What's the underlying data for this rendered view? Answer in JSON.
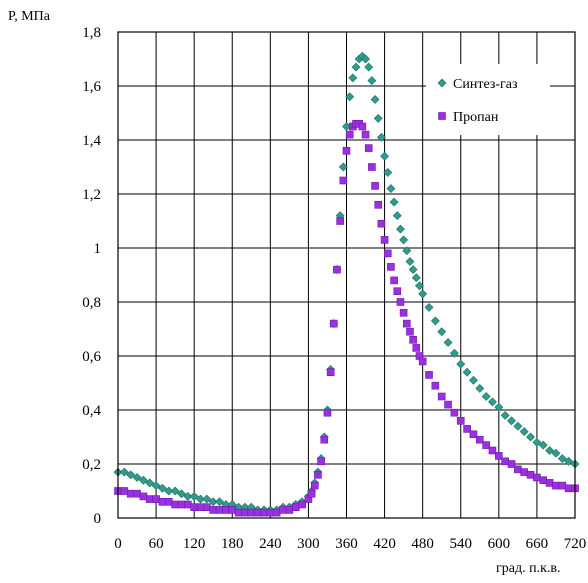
{
  "chart_data": {
    "type": "scatter",
    "ylabel": "P, МПа",
    "xlabel": "град. п.к.в.",
    "xlim": [
      0,
      720
    ],
    "ylim": [
      0,
      1.8
    ],
    "xticks": [
      0,
      60,
      120,
      180,
      240,
      300,
      360,
      420,
      480,
      540,
      600,
      660,
      720
    ],
    "yticks": [
      0,
      0.2,
      0.4,
      0.6,
      0.8,
      1.0,
      1.2,
      1.4,
      1.6,
      1.8
    ],
    "xtick_labels": [
      "0",
      "60",
      "120",
      "180",
      "240",
      "300",
      "360",
      "420",
      "480",
      "540",
      "600",
      "660",
      "720"
    ],
    "ytick_labels": [
      "0",
      "0,2",
      "0,4",
      "0,6",
      "0,8",
      "1",
      "1,2",
      "1,4",
      "1,6",
      "1,8"
    ],
    "grid": true,
    "legend_position": "top-right",
    "series": [
      {
        "name": "Синтез-газ",
        "color": "#2f9d8d",
        "marker": "diamond",
        "x": [
          0,
          10,
          20,
          30,
          40,
          50,
          60,
          70,
          80,
          90,
          100,
          110,
          120,
          130,
          140,
          150,
          160,
          170,
          180,
          190,
          200,
          210,
          220,
          230,
          240,
          250,
          260,
          270,
          280,
          290,
          300,
          305,
          310,
          315,
          320,
          325,
          330,
          335,
          340,
          345,
          350,
          355,
          360,
          365,
          370,
          375,
          380,
          385,
          390,
          395,
          400,
          405,
          410,
          415,
          420,
          425,
          430,
          435,
          440,
          445,
          450,
          455,
          460,
          465,
          470,
          475,
          480,
          490,
          500,
          510,
          520,
          530,
          540,
          550,
          560,
          570,
          580,
          590,
          600,
          610,
          620,
          630,
          640,
          650,
          660,
          670,
          680,
          690,
          700,
          710,
          720
        ],
        "values": [
          0.17,
          0.17,
          0.16,
          0.15,
          0.14,
          0.13,
          0.12,
          0.11,
          0.1,
          0.1,
          0.09,
          0.08,
          0.08,
          0.07,
          0.07,
          0.06,
          0.06,
          0.05,
          0.05,
          0.04,
          0.04,
          0.04,
          0.03,
          0.03,
          0.03,
          0.03,
          0.04,
          0.04,
          0.05,
          0.06,
          0.08,
          0.1,
          0.13,
          0.17,
          0.22,
          0.3,
          0.4,
          0.55,
          0.72,
          0.92,
          1.12,
          1.3,
          1.45,
          1.56,
          1.63,
          1.67,
          1.7,
          1.71,
          1.7,
          1.67,
          1.62,
          1.55,
          1.48,
          1.41,
          1.34,
          1.28,
          1.22,
          1.17,
          1.12,
          1.07,
          1.03,
          0.99,
          0.95,
          0.92,
          0.89,
          0.86,
          0.83,
          0.78,
          0.73,
          0.69,
          0.65,
          0.61,
          0.57,
          0.54,
          0.51,
          0.48,
          0.45,
          0.43,
          0.41,
          0.38,
          0.36,
          0.34,
          0.32,
          0.3,
          0.28,
          0.27,
          0.25,
          0.24,
          0.22,
          0.21,
          0.2
        ]
      },
      {
        "name": "Пропан",
        "color": "#9b30e0",
        "marker": "square",
        "x": [
          0,
          10,
          20,
          30,
          40,
          50,
          60,
          70,
          80,
          90,
          100,
          110,
          120,
          130,
          140,
          150,
          160,
          170,
          180,
          190,
          200,
          210,
          220,
          230,
          240,
          250,
          260,
          270,
          280,
          290,
          300,
          305,
          310,
          315,
          320,
          325,
          330,
          335,
          340,
          345,
          350,
          355,
          360,
          365,
          370,
          375,
          380,
          385,
          390,
          395,
          400,
          405,
          410,
          415,
          420,
          425,
          430,
          435,
          440,
          445,
          450,
          455,
          460,
          465,
          470,
          475,
          480,
          490,
          500,
          510,
          520,
          530,
          540,
          550,
          560,
          570,
          580,
          590,
          600,
          610,
          620,
          630,
          640,
          650,
          660,
          670,
          680,
          690,
          700,
          710,
          720
        ],
        "values": [
          0.1,
          0.1,
          0.09,
          0.09,
          0.08,
          0.07,
          0.07,
          0.06,
          0.06,
          0.05,
          0.05,
          0.05,
          0.04,
          0.04,
          0.04,
          0.03,
          0.03,
          0.03,
          0.03,
          0.02,
          0.02,
          0.02,
          0.02,
          0.02,
          0.02,
          0.02,
          0.03,
          0.03,
          0.04,
          0.05,
          0.07,
          0.09,
          0.12,
          0.16,
          0.21,
          0.29,
          0.39,
          0.54,
          0.72,
          0.92,
          1.1,
          1.25,
          1.36,
          1.42,
          1.45,
          1.46,
          1.46,
          1.45,
          1.42,
          1.37,
          1.3,
          1.23,
          1.16,
          1.09,
          1.03,
          0.98,
          0.93,
          0.88,
          0.84,
          0.8,
          0.76,
          0.72,
          0.69,
          0.66,
          0.63,
          0.6,
          0.58,
          0.53,
          0.49,
          0.45,
          0.42,
          0.39,
          0.36,
          0.33,
          0.31,
          0.29,
          0.27,
          0.25,
          0.23,
          0.21,
          0.2,
          0.18,
          0.17,
          0.16,
          0.15,
          0.14,
          0.13,
          0.12,
          0.12,
          0.11,
          0.11
        ]
      }
    ]
  }
}
